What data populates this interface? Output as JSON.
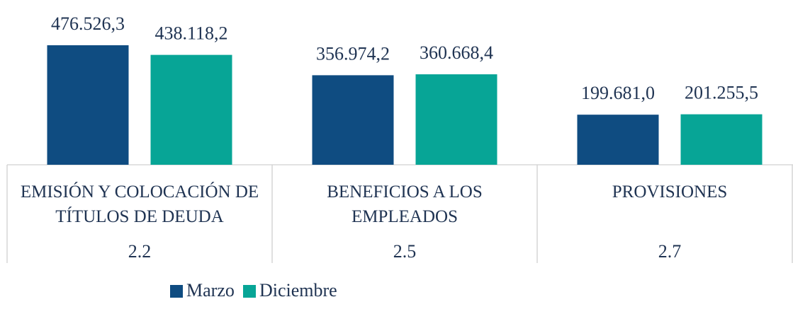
{
  "chart_data": {
    "type": "bar",
    "categories": [
      "EMISIÓN Y COLOCACIÓN DE TÍTULOS DE DEUDA",
      "BENEFICIOS A LOS EMPLEADOS",
      "PROVISIONES"
    ],
    "category_codes": [
      "2.2",
      "2.5",
      "2.7"
    ],
    "series": [
      {
        "name": "Marzo",
        "color": "#0f4c81",
        "values": [
          476526.3,
          356974.2,
          199681.0
        ],
        "value_labels": [
          "476.526,3",
          "356.974,2",
          "199.681,0"
        ]
      },
      {
        "name": "Diciembre",
        "color": "#07a596",
        "values": [
          438118.2,
          360668.4,
          201255.5
        ],
        "value_labels": [
          "438.118,2",
          "360.668,4",
          "201.255,5"
        ]
      }
    ],
    "legend": "bottom"
  }
}
